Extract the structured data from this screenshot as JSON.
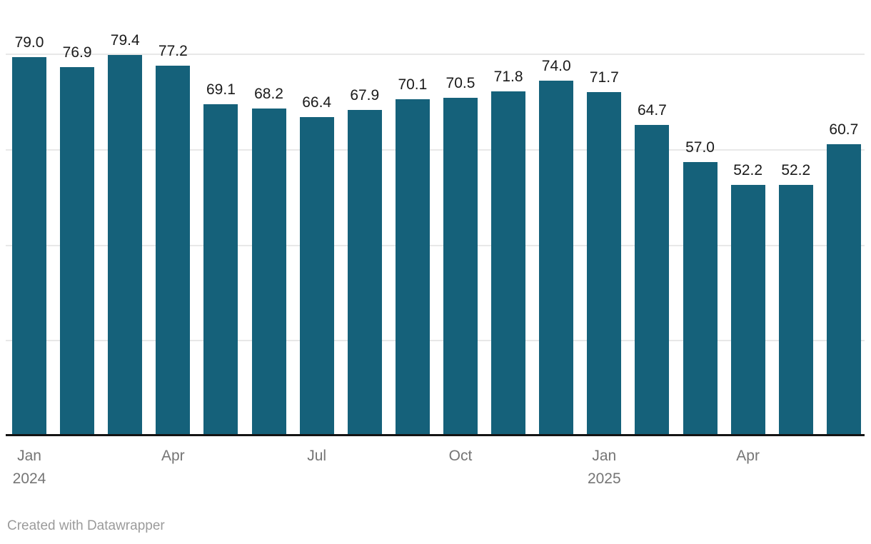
{
  "chart_data": {
    "type": "bar",
    "title": "",
    "categories": [
      "Jan 2024",
      "Feb 2024",
      "Mar 2024",
      "Apr 2024",
      "May 2024",
      "Jun 2024",
      "Jul 2024",
      "Aug 2024",
      "Sep 2024",
      "Oct 2024",
      "Nov 2024",
      "Dec 2024",
      "Jan 2025",
      "Feb 2025",
      "Mar 2025",
      "Apr 2025",
      "May 2025",
      "Jun 2025"
    ],
    "values": [
      79.0,
      76.9,
      79.4,
      77.2,
      69.1,
      68.2,
      66.4,
      67.9,
      70.1,
      70.5,
      71.8,
      74.0,
      71.7,
      64.7,
      57.0,
      52.2,
      52.2,
      60.7
    ],
    "value_labels": [
      "79.0",
      "76.9",
      "79.4",
      "77.2",
      "69.1",
      "68.2",
      "66.4",
      "67.9",
      "70.1",
      "70.5",
      "71.8",
      "74.0",
      "71.7",
      "64.7",
      "57.0",
      "52.2",
      "52.2",
      "60.7"
    ],
    "x_ticks": [
      {
        "index": 0,
        "lines": [
          "Jan",
          "2024"
        ]
      },
      {
        "index": 3,
        "lines": [
          "Apr"
        ]
      },
      {
        "index": 6,
        "lines": [
          "Jul"
        ]
      },
      {
        "index": 9,
        "lines": [
          "Oct"
        ]
      },
      {
        "index": 12,
        "lines": [
          "Jan",
          "2025"
        ]
      },
      {
        "index": 15,
        "lines": [
          "Apr"
        ]
      }
    ],
    "xlabel": "",
    "ylabel": "",
    "ylim": [
      0,
      91.4
    ],
    "gridline_values": [
      20,
      40,
      60,
      80
    ],
    "grid": true,
    "legend": false,
    "value_labels_shown": true,
    "y_axis_labels_shown": false
  },
  "colors": {
    "bar": "#15617a",
    "value_text": "#1a1a1a",
    "axis_text": "#757575",
    "gridline": "#e8e8e8",
    "baseline": "#141414",
    "footer_text": "#9b9b9b"
  },
  "footer": {
    "attribution": "Created with Datawrapper"
  }
}
